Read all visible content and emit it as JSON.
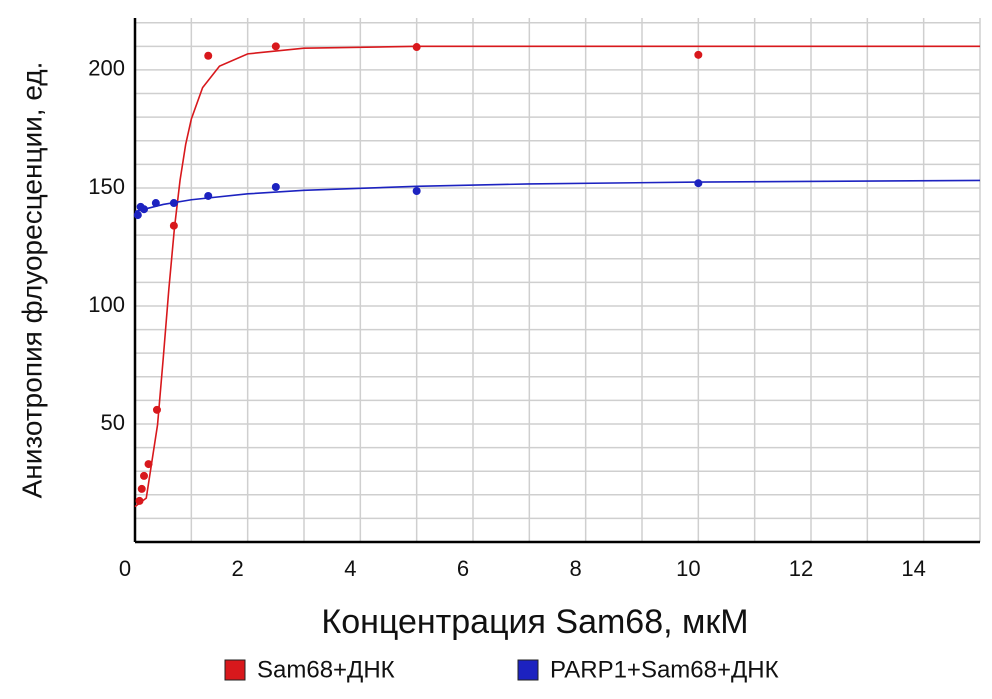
{
  "chart_data": {
    "type": "scatter",
    "xlabel": "Концентрация Sam68, мкМ",
    "ylabel": "Анизотропия флуоресценции, ед.",
    "xlim": [
      0,
      15
    ],
    "ylim": [
      0,
      222
    ],
    "xticks": [
      0,
      2,
      4,
      6,
      8,
      10,
      12,
      14
    ],
    "yticks": [
      50,
      100,
      150,
      200
    ],
    "xminor": [
      1,
      3,
      5,
      7,
      9,
      11,
      13,
      15
    ],
    "yminor": [
      10,
      20,
      30,
      40,
      60,
      70,
      80,
      90,
      110,
      120,
      130,
      140,
      160,
      170,
      180,
      190,
      210,
      220
    ],
    "grid": true,
    "legend": "bottom",
    "series": [
      {
        "name": "Sam68+ДНК",
        "color": "#d8181c",
        "x": [
          0.08,
          0.12,
          0.16,
          0.24,
          0.39,
          0.69,
          1.3,
          2.5,
          5,
          10
        ],
        "values": [
          17.4,
          22.5,
          28,
          33,
          56,
          134,
          206,
          210,
          209.7,
          206.4
        ],
        "fit": {
          "x": [
            0,
            0.2,
            0.4,
            0.5,
            0.6,
            0.7,
            0.8,
            0.9,
            1.0,
            1.2,
            1.5,
            2,
            3,
            5,
            10,
            15
          ],
          "values": [
            15,
            18.6,
            49.6,
            77.5,
            106.9,
            133,
            153.3,
            168.5,
            179.2,
            192.5,
            201.6,
            206.8,
            209.2,
            210,
            210,
            210
          ]
        }
      },
      {
        "name": "PARP1+Sam68+ДНК",
        "color": "#1c22c0",
        "x": [
          0.05,
          0.1,
          0.16,
          0.37,
          0.69,
          1.3,
          2.5,
          5,
          10
        ],
        "values": [
          138.5,
          142,
          141,
          143.6,
          143.6,
          146.6,
          150.4,
          148.7,
          152
        ],
        "fit": {
          "x": [
            0,
            0.5,
            1,
            2,
            3,
            5,
            7,
            10,
            15
          ],
          "values": [
            140,
            143,
            145,
            147.5,
            149,
            150.7,
            151.7,
            152.5,
            153.2
          ]
        }
      }
    ]
  }
}
